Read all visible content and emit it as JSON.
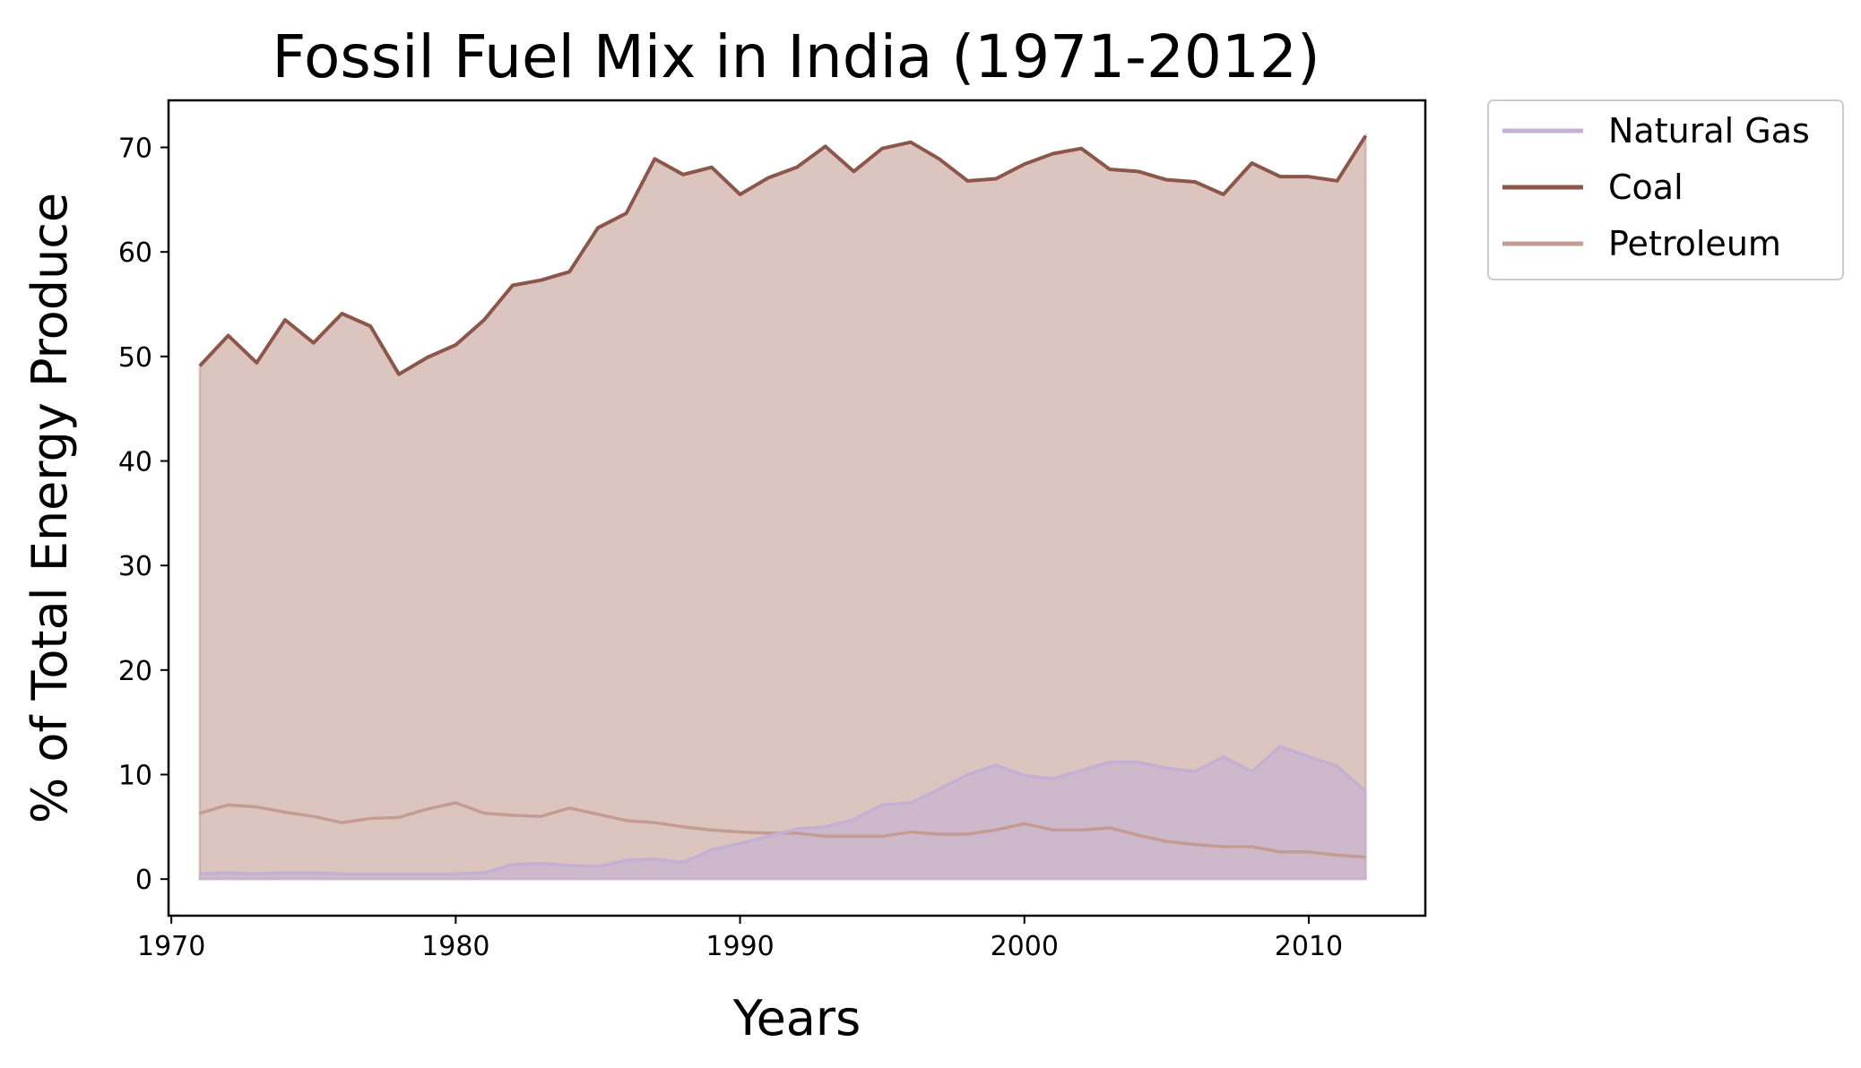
{
  "chart_data": {
    "type": "area",
    "title": "Fossil Fuel Mix in India (1971-2012)",
    "xlabel": "Years",
    "ylabel": "% of Total Energy Produce",
    "xlim": [
      1969.9,
      2014.1
    ],
    "ylim": [
      -3.5,
      74.5
    ],
    "x_ticks": [
      1970,
      1980,
      1990,
      2000,
      2010
    ],
    "y_ticks": [
      0,
      10,
      20,
      30,
      40,
      50,
      60,
      70
    ],
    "grid": false,
    "legend_position": "outside-top-right",
    "x": [
      1971,
      1972,
      1973,
      1974,
      1975,
      1976,
      1977,
      1978,
      1979,
      1980,
      1981,
      1982,
      1983,
      1984,
      1985,
      1986,
      1987,
      1988,
      1989,
      1990,
      1991,
      1992,
      1993,
      1994,
      1995,
      1996,
      1997,
      1998,
      1999,
      2000,
      2001,
      2002,
      2003,
      2004,
      2005,
      2006,
      2007,
      2008,
      2009,
      2010,
      2011,
      2012
    ],
    "series": [
      {
        "name": "Natural Gas",
        "color": "#c5b0d5",
        "fill_alpha": 0.6,
        "values": [
          0.5,
          0.6,
          0.5,
          0.6,
          0.6,
          0.5,
          0.5,
          0.5,
          0.5,
          0.5,
          0.6,
          1.4,
          1.5,
          1.3,
          1.2,
          1.8,
          1.9,
          1.6,
          2.8,
          3.4,
          4.1,
          4.8,
          5.0,
          5.7,
          7.1,
          7.3,
          8.6,
          10.0,
          10.9,
          9.9,
          9.6,
          10.4,
          11.2,
          11.2,
          10.6,
          10.3,
          11.7,
          10.3,
          12.7,
          11.7,
          10.8,
          8.4
        ]
      },
      {
        "name": "Coal",
        "color": "#8c564b",
        "fill_alpha": 0.0,
        "values": [
          49.1,
          52.0,
          49.4,
          53.5,
          51.3,
          54.1,
          52.9,
          48.3,
          49.9,
          51.1,
          53.5,
          56.8,
          57.3,
          58.1,
          62.3,
          63.7,
          68.9,
          67.4,
          68.1,
          65.5,
          67.1,
          68.1,
          70.1,
          67.7,
          69.9,
          70.5,
          68.9,
          66.8,
          67.0,
          68.4,
          69.4,
          69.9,
          67.9,
          67.7,
          66.9,
          66.7,
          65.5,
          68.5,
          67.2,
          67.2,
          66.8,
          71.1
        ]
      },
      {
        "name": "Petroleum",
        "color": "#c49c94",
        "fill_alpha": 0.6,
        "values": [
          6.3,
          7.1,
          6.9,
          6.4,
          6.0,
          5.4,
          5.8,
          5.9,
          6.7,
          7.3,
          6.3,
          6.1,
          6.0,
          6.8,
          6.2,
          5.6,
          5.4,
          5.0,
          4.7,
          4.5,
          4.4,
          4.4,
          4.1,
          4.1,
          4.1,
          4.5,
          4.3,
          4.3,
          4.7,
          5.3,
          4.7,
          4.7,
          4.9,
          4.2,
          3.6,
          3.3,
          3.1,
          3.1,
          2.6,
          2.6,
          2.3,
          2.1
        ]
      }
    ]
  }
}
